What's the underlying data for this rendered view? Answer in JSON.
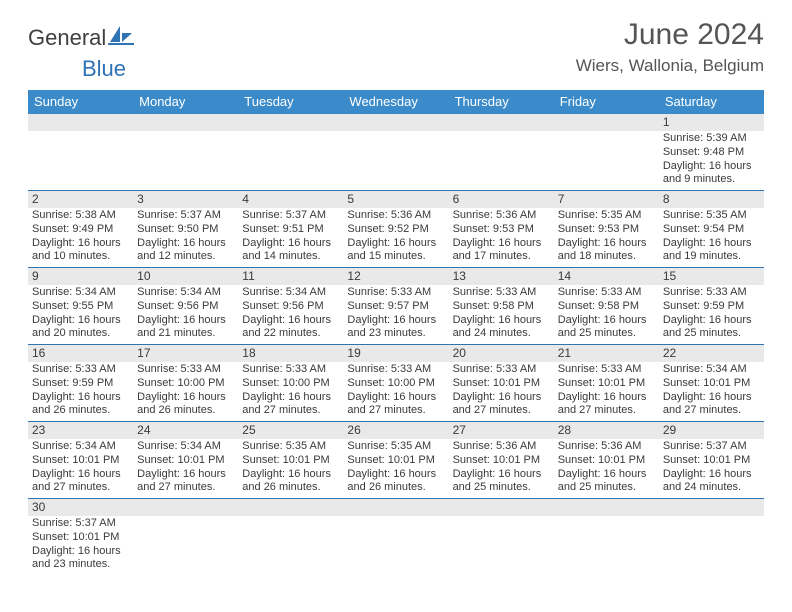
{
  "logo": {
    "text1": "General",
    "text2": "Blue"
  },
  "header": {
    "title": "June 2024",
    "location": "Wiers, Wallonia, Belgium"
  },
  "colors": {
    "header_bg": "#3b8bca",
    "header_fg": "#ffffff",
    "rule": "#2f73b5",
    "band": "#e9e9e9",
    "text": "#3a3a3a",
    "title": "#555555"
  },
  "dow": [
    "Sunday",
    "Monday",
    "Tuesday",
    "Wednesday",
    "Thursday",
    "Friday",
    "Saturday"
  ],
  "weeks": [
    [
      null,
      null,
      null,
      null,
      null,
      null,
      {
        "n": "1",
        "sr": "Sunrise: 5:39 AM",
        "ss": "Sunset: 9:48 PM",
        "d1": "Daylight: 16 hours",
        "d2": "and 9 minutes."
      }
    ],
    [
      {
        "n": "2",
        "sr": "Sunrise: 5:38 AM",
        "ss": "Sunset: 9:49 PM",
        "d1": "Daylight: 16 hours",
        "d2": "and 10 minutes."
      },
      {
        "n": "3",
        "sr": "Sunrise: 5:37 AM",
        "ss": "Sunset: 9:50 PM",
        "d1": "Daylight: 16 hours",
        "d2": "and 12 minutes."
      },
      {
        "n": "4",
        "sr": "Sunrise: 5:37 AM",
        "ss": "Sunset: 9:51 PM",
        "d1": "Daylight: 16 hours",
        "d2": "and 14 minutes."
      },
      {
        "n": "5",
        "sr": "Sunrise: 5:36 AM",
        "ss": "Sunset: 9:52 PM",
        "d1": "Daylight: 16 hours",
        "d2": "and 15 minutes."
      },
      {
        "n": "6",
        "sr": "Sunrise: 5:36 AM",
        "ss": "Sunset: 9:53 PM",
        "d1": "Daylight: 16 hours",
        "d2": "and 17 minutes."
      },
      {
        "n": "7",
        "sr": "Sunrise: 5:35 AM",
        "ss": "Sunset: 9:53 PM",
        "d1": "Daylight: 16 hours",
        "d2": "and 18 minutes."
      },
      {
        "n": "8",
        "sr": "Sunrise: 5:35 AM",
        "ss": "Sunset: 9:54 PM",
        "d1": "Daylight: 16 hours",
        "d2": "and 19 minutes."
      }
    ],
    [
      {
        "n": "9",
        "sr": "Sunrise: 5:34 AM",
        "ss": "Sunset: 9:55 PM",
        "d1": "Daylight: 16 hours",
        "d2": "and 20 minutes."
      },
      {
        "n": "10",
        "sr": "Sunrise: 5:34 AM",
        "ss": "Sunset: 9:56 PM",
        "d1": "Daylight: 16 hours",
        "d2": "and 21 minutes."
      },
      {
        "n": "11",
        "sr": "Sunrise: 5:34 AM",
        "ss": "Sunset: 9:56 PM",
        "d1": "Daylight: 16 hours",
        "d2": "and 22 minutes."
      },
      {
        "n": "12",
        "sr": "Sunrise: 5:33 AM",
        "ss": "Sunset: 9:57 PM",
        "d1": "Daylight: 16 hours",
        "d2": "and 23 minutes."
      },
      {
        "n": "13",
        "sr": "Sunrise: 5:33 AM",
        "ss": "Sunset: 9:58 PM",
        "d1": "Daylight: 16 hours",
        "d2": "and 24 minutes."
      },
      {
        "n": "14",
        "sr": "Sunrise: 5:33 AM",
        "ss": "Sunset: 9:58 PM",
        "d1": "Daylight: 16 hours",
        "d2": "and 25 minutes."
      },
      {
        "n": "15",
        "sr": "Sunrise: 5:33 AM",
        "ss": "Sunset: 9:59 PM",
        "d1": "Daylight: 16 hours",
        "d2": "and 25 minutes."
      }
    ],
    [
      {
        "n": "16",
        "sr": "Sunrise: 5:33 AM",
        "ss": "Sunset: 9:59 PM",
        "d1": "Daylight: 16 hours",
        "d2": "and 26 minutes."
      },
      {
        "n": "17",
        "sr": "Sunrise: 5:33 AM",
        "ss": "Sunset: 10:00 PM",
        "d1": "Daylight: 16 hours",
        "d2": "and 26 minutes."
      },
      {
        "n": "18",
        "sr": "Sunrise: 5:33 AM",
        "ss": "Sunset: 10:00 PM",
        "d1": "Daylight: 16 hours",
        "d2": "and 27 minutes."
      },
      {
        "n": "19",
        "sr": "Sunrise: 5:33 AM",
        "ss": "Sunset: 10:00 PM",
        "d1": "Daylight: 16 hours",
        "d2": "and 27 minutes."
      },
      {
        "n": "20",
        "sr": "Sunrise: 5:33 AM",
        "ss": "Sunset: 10:01 PM",
        "d1": "Daylight: 16 hours",
        "d2": "and 27 minutes."
      },
      {
        "n": "21",
        "sr": "Sunrise: 5:33 AM",
        "ss": "Sunset: 10:01 PM",
        "d1": "Daylight: 16 hours",
        "d2": "and 27 minutes."
      },
      {
        "n": "22",
        "sr": "Sunrise: 5:34 AM",
        "ss": "Sunset: 10:01 PM",
        "d1": "Daylight: 16 hours",
        "d2": "and 27 minutes."
      }
    ],
    [
      {
        "n": "23",
        "sr": "Sunrise: 5:34 AM",
        "ss": "Sunset: 10:01 PM",
        "d1": "Daylight: 16 hours",
        "d2": "and 27 minutes."
      },
      {
        "n": "24",
        "sr": "Sunrise: 5:34 AM",
        "ss": "Sunset: 10:01 PM",
        "d1": "Daylight: 16 hours",
        "d2": "and 27 minutes."
      },
      {
        "n": "25",
        "sr": "Sunrise: 5:35 AM",
        "ss": "Sunset: 10:01 PM",
        "d1": "Daylight: 16 hours",
        "d2": "and 26 minutes."
      },
      {
        "n": "26",
        "sr": "Sunrise: 5:35 AM",
        "ss": "Sunset: 10:01 PM",
        "d1": "Daylight: 16 hours",
        "d2": "and 26 minutes."
      },
      {
        "n": "27",
        "sr": "Sunrise: 5:36 AM",
        "ss": "Sunset: 10:01 PM",
        "d1": "Daylight: 16 hours",
        "d2": "and 25 minutes."
      },
      {
        "n": "28",
        "sr": "Sunrise: 5:36 AM",
        "ss": "Sunset: 10:01 PM",
        "d1": "Daylight: 16 hours",
        "d2": "and 25 minutes."
      },
      {
        "n": "29",
        "sr": "Sunrise: 5:37 AM",
        "ss": "Sunset: 10:01 PM",
        "d1": "Daylight: 16 hours",
        "d2": "and 24 minutes."
      }
    ],
    [
      {
        "n": "30",
        "sr": "Sunrise: 5:37 AM",
        "ss": "Sunset: 10:01 PM",
        "d1": "Daylight: 16 hours",
        "d2": "and 23 minutes."
      },
      null,
      null,
      null,
      null,
      null,
      null
    ]
  ]
}
